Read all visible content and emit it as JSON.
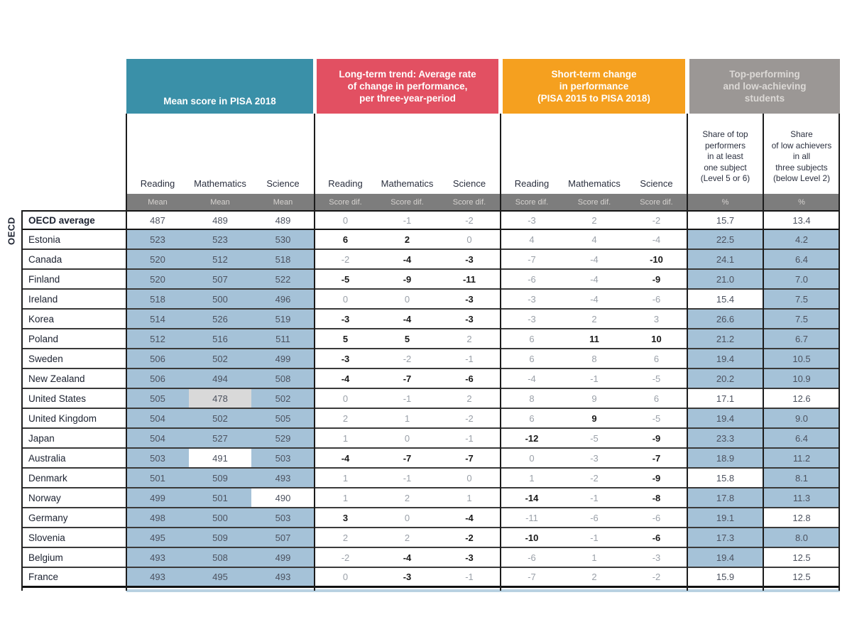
{
  "side_label": "OECD",
  "colors": {
    "teal": "#3a90a8",
    "red": "#e25062",
    "orange": "#f5a01f",
    "grayband": "#9b9795",
    "unitbar": "#7d7d7d",
    "cellblue": "#a5c2d8",
    "cellgray": "#d9d9d9",
    "strip": "#b9d2e2"
  },
  "header": {
    "groups": [
      {
        "title": "Mean score in PISA 2018"
      },
      {
        "title": "Long-term trend: Average rate\nof change in performance,\nper three-year-period"
      },
      {
        "title": "Short-term change\nin performance\n(PISA 2015 to PISA 2018)"
      },
      {
        "title": "Top-performing\nand low-achieving\nstudents"
      }
    ],
    "subjects": [
      "Reading",
      "Mathematics",
      "Science"
    ],
    "share_columns": [
      "Share of top\nperformers\nin at least\none subject\n(Level 5 or 6)",
      "Share\nof low achievers\nin all\nthree subjects\n(below Level 2)"
    ],
    "units": [
      "Mean",
      "Mean",
      "Mean",
      "Score dif.",
      "Score dif.",
      "Score dif.",
      "Score dif.",
      "Score dif.",
      "Score dif.",
      "%",
      "%"
    ]
  },
  "rows": [
    {
      "country": "OECD average",
      "bold": true,
      "mean": [
        [
          "487",
          "white"
        ],
        [
          "489",
          "white"
        ],
        [
          "489",
          "white"
        ]
      ],
      "diffs": [
        [
          "0",
          0
        ],
        [
          "-1",
          0
        ],
        [
          "-2",
          0
        ],
        [
          "-3",
          0
        ],
        [
          "2",
          0
        ],
        [
          "-2",
          0
        ]
      ],
      "shares": [
        [
          "15.7",
          "white"
        ],
        [
          "13.4",
          "white"
        ]
      ]
    },
    {
      "country": "Estonia",
      "bold": false,
      "mean": [
        [
          "523",
          "blue"
        ],
        [
          "523",
          "blue"
        ],
        [
          "530",
          "blue"
        ]
      ],
      "diffs": [
        [
          "6",
          1
        ],
        [
          "2",
          1
        ],
        [
          "0",
          0
        ],
        [
          "4",
          0
        ],
        [
          "4",
          0
        ],
        [
          "-4",
          0
        ]
      ],
      "shares": [
        [
          "22.5",
          "blue"
        ],
        [
          "4.2",
          "blue"
        ]
      ]
    },
    {
      "country": "Canada",
      "bold": false,
      "mean": [
        [
          "520",
          "blue"
        ],
        [
          "512",
          "blue"
        ],
        [
          "518",
          "blue"
        ]
      ],
      "diffs": [
        [
          "-2",
          0
        ],
        [
          "-4",
          1
        ],
        [
          "-3",
          1
        ],
        [
          "-7",
          0
        ],
        [
          "-4",
          0
        ],
        [
          "-10",
          1
        ]
      ],
      "shares": [
        [
          "24.1",
          "blue"
        ],
        [
          "6.4",
          "blue"
        ]
      ]
    },
    {
      "country": "Finland",
      "bold": false,
      "mean": [
        [
          "520",
          "blue"
        ],
        [
          "507",
          "blue"
        ],
        [
          "522",
          "blue"
        ]
      ],
      "diffs": [
        [
          "-5",
          1
        ],
        [
          "-9",
          1
        ],
        [
          "-11",
          1
        ],
        [
          "-6",
          0
        ],
        [
          "-4",
          0
        ],
        [
          "-9",
          1
        ]
      ],
      "shares": [
        [
          "21.0",
          "blue"
        ],
        [
          "7.0",
          "blue"
        ]
      ]
    },
    {
      "country": "Ireland",
      "bold": false,
      "mean": [
        [
          "518",
          "blue"
        ],
        [
          "500",
          "blue"
        ],
        [
          "496",
          "blue"
        ]
      ],
      "diffs": [
        [
          "0",
          0
        ],
        [
          "0",
          0
        ],
        [
          "-3",
          1
        ],
        [
          "-3",
          0
        ],
        [
          "-4",
          0
        ],
        [
          "-6",
          0
        ]
      ],
      "shares": [
        [
          "15.4",
          "white"
        ],
        [
          "7.5",
          "blue"
        ]
      ]
    },
    {
      "country": "Korea",
      "bold": false,
      "mean": [
        [
          "514",
          "blue"
        ],
        [
          "526",
          "blue"
        ],
        [
          "519",
          "blue"
        ]
      ],
      "diffs": [
        [
          "-3",
          1
        ],
        [
          "-4",
          1
        ],
        [
          "-3",
          1
        ],
        [
          "-3",
          0
        ],
        [
          "2",
          0
        ],
        [
          "3",
          0
        ]
      ],
      "shares": [
        [
          "26.6",
          "blue"
        ],
        [
          "7.5",
          "blue"
        ]
      ]
    },
    {
      "country": "Poland",
      "bold": false,
      "mean": [
        [
          "512",
          "blue"
        ],
        [
          "516",
          "blue"
        ],
        [
          "511",
          "blue"
        ]
      ],
      "diffs": [
        [
          "5",
          1
        ],
        [
          "5",
          1
        ],
        [
          "2",
          0
        ],
        [
          "6",
          0
        ],
        [
          "11",
          1
        ],
        [
          "10",
          1
        ]
      ],
      "shares": [
        [
          "21.2",
          "blue"
        ],
        [
          "6.7",
          "blue"
        ]
      ]
    },
    {
      "country": "Sweden",
      "bold": false,
      "mean": [
        [
          "506",
          "blue"
        ],
        [
          "502",
          "blue"
        ],
        [
          "499",
          "blue"
        ]
      ],
      "diffs": [
        [
          "-3",
          1
        ],
        [
          "-2",
          0
        ],
        [
          "-1",
          0
        ],
        [
          "6",
          0
        ],
        [
          "8",
          0
        ],
        [
          "6",
          0
        ]
      ],
      "shares": [
        [
          "19.4",
          "blue"
        ],
        [
          "10.5",
          "blue"
        ]
      ]
    },
    {
      "country": "New Zealand",
      "bold": false,
      "mean": [
        [
          "506",
          "blue"
        ],
        [
          "494",
          "blue"
        ],
        [
          "508",
          "blue"
        ]
      ],
      "diffs": [
        [
          "-4",
          1
        ],
        [
          "-7",
          1
        ],
        [
          "-6",
          1
        ],
        [
          "-4",
          0
        ],
        [
          "-1",
          0
        ],
        [
          "-5",
          0
        ]
      ],
      "shares": [
        [
          "20.2",
          "blue"
        ],
        [
          "10.9",
          "blue"
        ]
      ]
    },
    {
      "country": "United States",
      "bold": false,
      "mean": [
        [
          "505",
          "blue"
        ],
        [
          "478",
          "gray"
        ],
        [
          "502",
          "blue"
        ]
      ],
      "diffs": [
        [
          "0",
          0
        ],
        [
          "-1",
          0
        ],
        [
          "2",
          0
        ],
        [
          "8",
          0
        ],
        [
          "9",
          0
        ],
        [
          "6",
          0
        ]
      ],
      "shares": [
        [
          "17.1",
          "white"
        ],
        [
          "12.6",
          "white"
        ]
      ]
    },
    {
      "country": "United Kingdom",
      "bold": false,
      "mean": [
        [
          "504",
          "blue"
        ],
        [
          "502",
          "blue"
        ],
        [
          "505",
          "blue"
        ]
      ],
      "diffs": [
        [
          "2",
          0
        ],
        [
          "1",
          0
        ],
        [
          "-2",
          0
        ],
        [
          "6",
          0
        ],
        [
          "9",
          1
        ],
        [
          "-5",
          0
        ]
      ],
      "shares": [
        [
          "19.4",
          "blue"
        ],
        [
          "9.0",
          "blue"
        ]
      ]
    },
    {
      "country": "Japan",
      "bold": false,
      "mean": [
        [
          "504",
          "blue"
        ],
        [
          "527",
          "blue"
        ],
        [
          "529",
          "blue"
        ]
      ],
      "diffs": [
        [
          "1",
          0
        ],
        [
          "0",
          0
        ],
        [
          "-1",
          0
        ],
        [
          "-12",
          1
        ],
        [
          "-5",
          0
        ],
        [
          "-9",
          1
        ]
      ],
      "shares": [
        [
          "23.3",
          "blue"
        ],
        [
          "6.4",
          "blue"
        ]
      ]
    },
    {
      "country": "Australia",
      "bold": false,
      "mean": [
        [
          "503",
          "blue"
        ],
        [
          "491",
          "white"
        ],
        [
          "503",
          "blue"
        ]
      ],
      "diffs": [
        [
          "-4",
          1
        ],
        [
          "-7",
          1
        ],
        [
          "-7",
          1
        ],
        [
          "0",
          0
        ],
        [
          "-3",
          0
        ],
        [
          "-7",
          1
        ]
      ],
      "shares": [
        [
          "18.9",
          "blue"
        ],
        [
          "11.2",
          "blue"
        ]
      ]
    },
    {
      "country": "Denmark",
      "bold": false,
      "mean": [
        [
          "501",
          "blue"
        ],
        [
          "509",
          "blue"
        ],
        [
          "493",
          "blue"
        ]
      ],
      "diffs": [
        [
          "1",
          0
        ],
        [
          "-1",
          0
        ],
        [
          "0",
          0
        ],
        [
          "1",
          0
        ],
        [
          "-2",
          0
        ],
        [
          "-9",
          1
        ]
      ],
      "shares": [
        [
          "15.8",
          "white"
        ],
        [
          "8.1",
          "blue"
        ]
      ]
    },
    {
      "country": "Norway",
      "bold": false,
      "mean": [
        [
          "499",
          "blue"
        ],
        [
          "501",
          "blue"
        ],
        [
          "490",
          "white"
        ]
      ],
      "diffs": [
        [
          "1",
          0
        ],
        [
          "2",
          0
        ],
        [
          "1",
          0
        ],
        [
          "-14",
          1
        ],
        [
          "-1",
          0
        ],
        [
          "-8",
          1
        ]
      ],
      "shares": [
        [
          "17.8",
          "blue"
        ],
        [
          "11.3",
          "blue"
        ]
      ]
    },
    {
      "country": "Germany",
      "bold": false,
      "mean": [
        [
          "498",
          "blue"
        ],
        [
          "500",
          "blue"
        ],
        [
          "503",
          "blue"
        ]
      ],
      "diffs": [
        [
          "3",
          1
        ],
        [
          "0",
          0
        ],
        [
          "-4",
          1
        ],
        [
          "-11",
          0
        ],
        [
          "-6",
          0
        ],
        [
          "-6",
          0
        ]
      ],
      "shares": [
        [
          "19.1",
          "blue"
        ],
        [
          "12.8",
          "white"
        ]
      ]
    },
    {
      "country": "Slovenia",
      "bold": false,
      "mean": [
        [
          "495",
          "blue"
        ],
        [
          "509",
          "blue"
        ],
        [
          "507",
          "blue"
        ]
      ],
      "diffs": [
        [
          "2",
          0
        ],
        [
          "2",
          0
        ],
        [
          "-2",
          1
        ],
        [
          "-10",
          1
        ],
        [
          "-1",
          0
        ],
        [
          "-6",
          1
        ]
      ],
      "shares": [
        [
          "17.3",
          "blue"
        ],
        [
          "8.0",
          "blue"
        ]
      ]
    },
    {
      "country": "Belgium",
      "bold": false,
      "mean": [
        [
          "493",
          "blue"
        ],
        [
          "508",
          "blue"
        ],
        [
          "499",
          "blue"
        ]
      ],
      "diffs": [
        [
          "-2",
          0
        ],
        [
          "-4",
          1
        ],
        [
          "-3",
          1
        ],
        [
          "-6",
          0
        ],
        [
          "1",
          0
        ],
        [
          "-3",
          0
        ]
      ],
      "shares": [
        [
          "19.4",
          "blue"
        ],
        [
          "12.5",
          "white"
        ]
      ]
    },
    {
      "country": "France",
      "bold": false,
      "mean": [
        [
          "493",
          "blue"
        ],
        [
          "495",
          "blue"
        ],
        [
          "493",
          "blue"
        ]
      ],
      "diffs": [
        [
          "0",
          0
        ],
        [
          "-3",
          1
        ],
        [
          "-1",
          0
        ],
        [
          "-7",
          0
        ],
        [
          "2",
          0
        ],
        [
          "-2",
          0
        ]
      ],
      "shares": [
        [
          "15.9",
          "white"
        ],
        [
          "12.5",
          "white"
        ]
      ]
    }
  ]
}
